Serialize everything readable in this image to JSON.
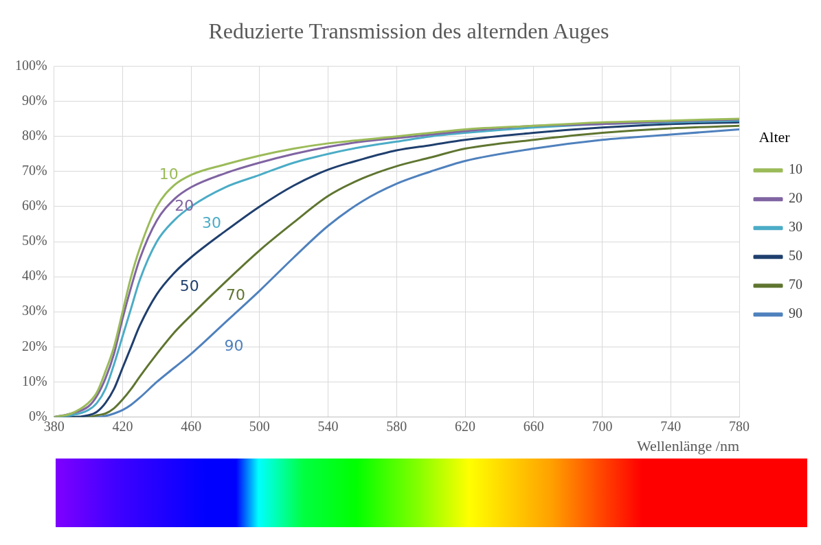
{
  "chart_data": {
    "type": "line",
    "title": "Reduzierte Transmission des alternden Auges",
    "xlabel": "Wellenlänge /nm",
    "legend_title": "Alter",
    "legend": "right",
    "grid": true,
    "marker": "none",
    "line_style": "solid",
    "x": [
      380,
      390,
      400,
      405,
      410,
      415,
      420,
      425,
      430,
      440,
      450,
      460,
      480,
      500,
      520,
      540,
      560,
      580,
      600,
      620,
      660,
      700,
      740,
      780
    ],
    "xlim": [
      380,
      780
    ],
    "xticks": [
      380,
      420,
      460,
      500,
      540,
      580,
      620,
      660,
      700,
      740,
      780
    ],
    "ylim": [
      0,
      100
    ],
    "yticks": [
      {
        "value": 0,
        "label": "0%"
      },
      {
        "value": 10,
        "label": "10%"
      },
      {
        "value": 20,
        "label": "20%"
      },
      {
        "value": 30,
        "label": "30%"
      },
      {
        "value": 40,
        "label": "40%"
      },
      {
        "value": 50,
        "label": "50%"
      },
      {
        "value": 60,
        "label": "60%"
      },
      {
        "value": 70,
        "label": "70%"
      },
      {
        "value": 80,
        "label": "80%"
      },
      {
        "value": 90,
        "label": "90%"
      },
      {
        "value": 100,
        "label": "100%"
      }
    ],
    "series": [
      {
        "name": "10",
        "color": "#9bbb59",
        "values": [
          0,
          1,
          4,
          7,
          13,
          20,
          30,
          40,
          48,
          60,
          66,
          69,
          72,
          74.5,
          76.5,
          78,
          79,
          80,
          81,
          82,
          83,
          84,
          84.5,
          85
        ]
      },
      {
        "name": "20",
        "color": "#8064a2",
        "values": [
          0,
          1,
          3,
          6,
          11,
          18,
          28,
          37,
          45,
          56,
          62,
          65.5,
          69.5,
          72.5,
          75,
          77,
          78.5,
          79.5,
          80.5,
          81.5,
          83,
          83.5,
          84.3,
          84.8
        ]
      },
      {
        "name": "30",
        "color": "#4bacc6",
        "values": [
          0,
          0.5,
          2,
          4,
          8,
          15,
          23,
          31,
          39,
          50,
          56,
          60,
          65.5,
          69,
          72.5,
          75,
          77,
          78.5,
          80,
          81,
          82.5,
          83.5,
          84,
          84.5
        ]
      },
      {
        "name": "50",
        "color": "#1f3f6e",
        "values": [
          0,
          0,
          0.5,
          1.5,
          4,
          8,
          14,
          20,
          26,
          35,
          41,
          45.5,
          53,
          60,
          66,
          70.5,
          73.5,
          76,
          77.5,
          79,
          81,
          82.5,
          83.5,
          84
        ]
      },
      {
        "name": "70",
        "color": "#5f7530",
        "values": [
          0,
          0,
          0,
          0.5,
          1,
          2.5,
          5,
          8,
          11.5,
          18,
          24,
          29,
          38.5,
          47.5,
          55.5,
          63,
          68,
          71.5,
          74,
          76.5,
          79,
          81,
          82.3,
          83
        ]
      },
      {
        "name": "90",
        "color": "#4f81bd",
        "values": [
          0,
          0,
          0,
          0,
          0.3,
          1,
          2,
          3.5,
          5.5,
          10,
          14,
          18,
          27,
          36,
          45.5,
          54.5,
          61.5,
          66.5,
          70,
          73,
          76.5,
          79,
          80.5,
          82
        ]
      }
    ]
  }
}
